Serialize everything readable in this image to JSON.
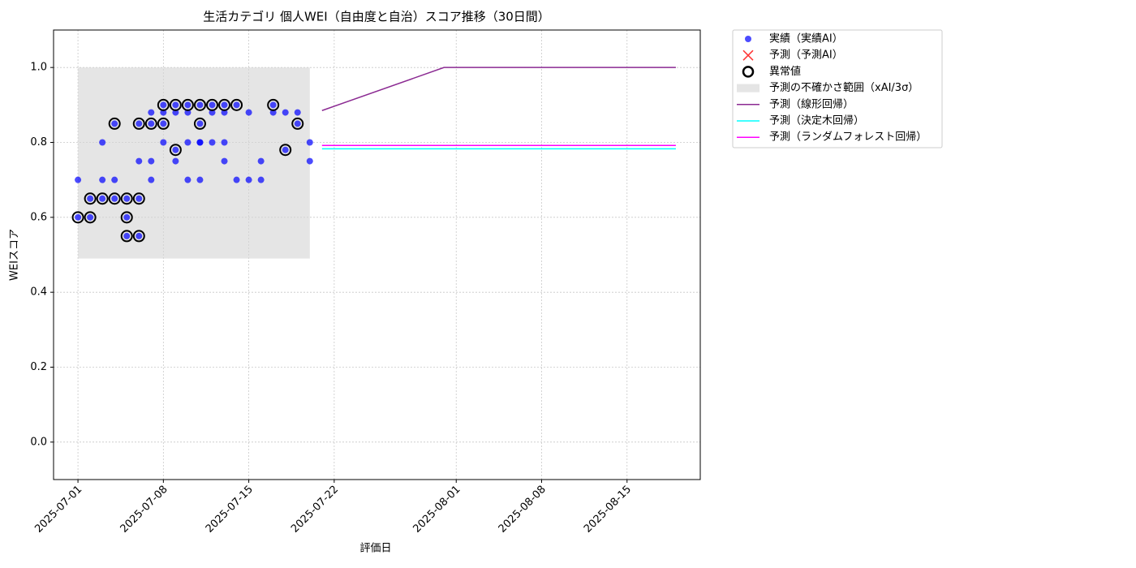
{
  "chart_data": {
    "type": "scatter",
    "title": "生活カテゴリ 個人WEI（自由度と自治）スコア推移（30日間）",
    "xlabel": "評価日",
    "ylabel": "WEIスコア",
    "xlim": [
      "2025-06-29",
      "2025-08-21"
    ],
    "ylim": [
      -0.1,
      1.1
    ],
    "xticks": [
      "2025-07-01",
      "2025-07-08",
      "2025-07-15",
      "2025-07-22",
      "2025-08-01",
      "2025-08-08",
      "2025-08-15"
    ],
    "yticks": [
      {
        "value": 0,
        "label": "0.0"
      },
      0.2,
      0.4,
      0.6,
      0.8,
      {
        "value": 1,
        "label": "1.0"
      }
    ],
    "grid": true,
    "legend": "outside",
    "series": [
      {
        "name": "実績（実績AI）",
        "type": "scatter",
        "color": "blue",
        "x": [
          "2025-07-01",
          "2025-07-01",
          "2025-07-02",
          "2025-07-02",
          "2025-07-03",
          "2025-07-03",
          "2025-07-03",
          "2025-07-04",
          "2025-07-04",
          "2025-07-04",
          "2025-07-05",
          "2025-07-05",
          "2025-07-05",
          "2025-07-06",
          "2025-07-06",
          "2025-07-06",
          "2025-07-06",
          "2025-07-07",
          "2025-07-07",
          "2025-07-07",
          "2025-07-07",
          "2025-07-08",
          "2025-07-08",
          "2025-07-08",
          "2025-07-08",
          "2025-07-09",
          "2025-07-09",
          "2025-07-09",
          "2025-07-09",
          "2025-07-10",
          "2025-07-10",
          "2025-07-10",
          "2025-07-10",
          "2025-07-11",
          "2025-07-11",
          "2025-07-11",
          "2025-07-11",
          "2025-07-11",
          "2025-07-12",
          "2025-07-12",
          "2025-07-12",
          "2025-07-13",
          "2025-07-13",
          "2025-07-13",
          "2025-07-13",
          "2025-07-14",
          "2025-07-14",
          "2025-07-15",
          "2025-07-15",
          "2025-07-16",
          "2025-07-16",
          "2025-07-17",
          "2025-07-17",
          "2025-07-18",
          "2025-07-18",
          "2025-07-19",
          "2025-07-19",
          "2025-07-20",
          "2025-07-20"
        ],
        "values": [
          0.7,
          0.6,
          0.65,
          0.6,
          0.65,
          0.8,
          0.7,
          0.7,
          0.85,
          0.65,
          0.65,
          0.6,
          0.55,
          0.65,
          0.55,
          0.85,
          0.75,
          0.7,
          0.85,
          0.75,
          0.88,
          0.9,
          0.8,
          0.88,
          0.85,
          0.78,
          0.75,
          0.9,
          0.88,
          0.9,
          0.88,
          0.8,
          0.7,
          0.8,
          0.7,
          0.85,
          0.9,
          0.8,
          0.88,
          0.9,
          0.8,
          0.88,
          0.75,
          0.9,
          0.8,
          0.9,
          0.7,
          0.88,
          0.7,
          0.75,
          0.7,
          0.9,
          0.88,
          0.88,
          0.78,
          0.88,
          0.85,
          0.8,
          0.75
        ]
      },
      {
        "name": "予測（予測AI）",
        "type": "cross",
        "color": "red",
        "x": [],
        "values": []
      },
      {
        "name": "異常値",
        "type": "outlier",
        "color": "black",
        "x": [
          "2025-07-01",
          "2025-07-02",
          "2025-07-02",
          "2025-07-03",
          "2025-07-04",
          "2025-07-04",
          "2025-07-05",
          "2025-07-05",
          "2025-07-05",
          "2025-07-06",
          "2025-07-06",
          "2025-07-06",
          "2025-07-07",
          "2025-07-08",
          "2025-07-08",
          "2025-07-09",
          "2025-07-09",
          "2025-07-10",
          "2025-07-11",
          "2025-07-11",
          "2025-07-12",
          "2025-07-13",
          "2025-07-14",
          "2025-07-17",
          "2025-07-18",
          "2025-07-19"
        ],
        "values": [
          0.6,
          0.65,
          0.6,
          0.65,
          0.85,
          0.65,
          0.65,
          0.6,
          0.55,
          0.65,
          0.55,
          0.85,
          0.85,
          0.9,
          0.85,
          0.78,
          0.9,
          0.9,
          0.85,
          0.9,
          0.9,
          0.9,
          0.9,
          0.9,
          0.78,
          0.85
        ]
      },
      {
        "name": "予測の不確かさ範囲（xAI/3σ）",
        "type": "band",
        "color": "#d3d3d3",
        "x": [
          "2025-07-01",
          "2025-07-20"
        ],
        "lower": [
          0.49,
          0.49
        ],
        "upper": [
          1.0,
          1.0
        ]
      },
      {
        "name": "予測（線形回帰）",
        "type": "line",
        "color": "#8b2a92",
        "x": [
          "2025-07-21",
          "2025-07-31",
          "2025-08-19"
        ],
        "values": [
          0.885,
          1.0,
          1.0
        ]
      },
      {
        "name": "予測（決定木回帰）",
        "type": "line",
        "color": "cyan",
        "x": [
          "2025-07-21",
          "2025-08-19"
        ],
        "values": [
          0.783,
          0.783
        ]
      },
      {
        "name": "予測（ランダムフォレスト回帰）",
        "type": "line",
        "color": "magenta",
        "x": [
          "2025-07-21",
          "2025-08-19"
        ],
        "values": [
          0.792,
          0.792
        ]
      }
    ]
  }
}
